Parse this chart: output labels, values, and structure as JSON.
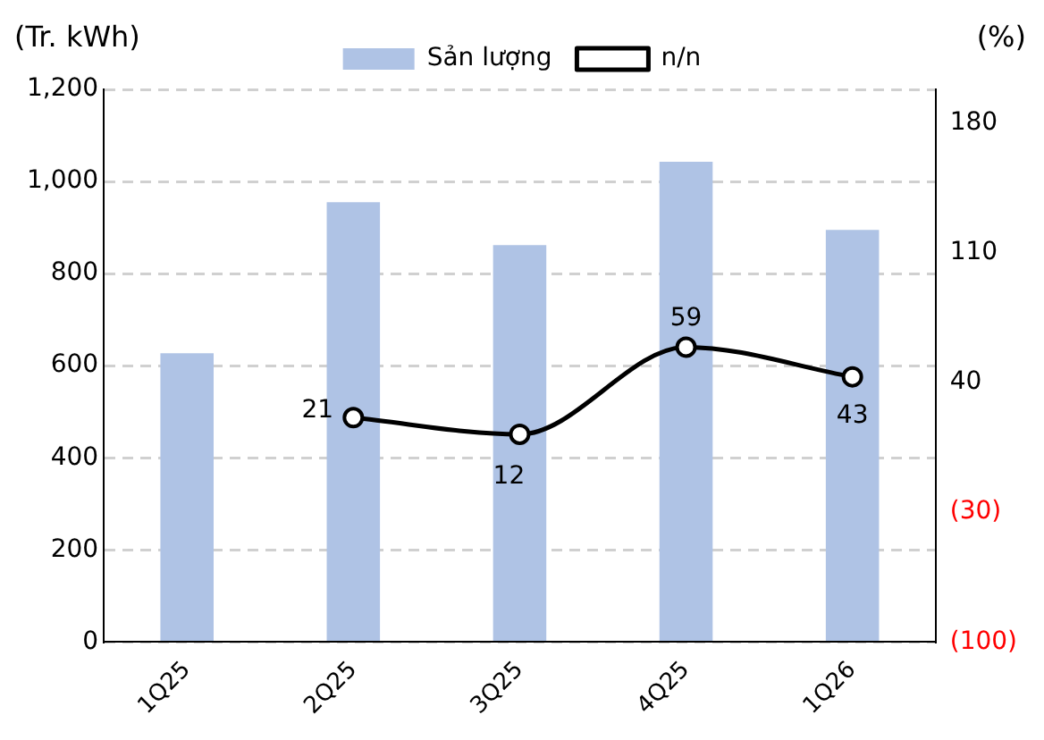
{
  "chart_data": {
    "type": "bar",
    "ylabel": "(Tr. kWh)",
    "y2label": "(%)",
    "categories": [
      "1Q25",
      "2Q25",
      "3Q25",
      "4Q25",
      "1Q26"
    ],
    "series": [
      {
        "name": "Sản lượng",
        "color": "#afc3e5",
        "values": [
          627,
          955,
          862,
          1043,
          895
        ]
      },
      {
        "name": "n/n",
        "type": "line",
        "axis": "y2",
        "color": "#000000",
        "values": [
          null,
          21,
          12,
          59,
          43
        ],
        "value_labels": [
          null,
          "21",
          "12",
          "59",
          "43"
        ]
      }
    ],
    "ylim": [
      0,
      1200
    ],
    "yticks": [
      0,
      {
        "value": 200,
        "label": "200"
      },
      400,
      600,
      800,
      {
        "value": 1000,
        "label": "1,000"
      },
      {
        "value": 1200,
        "label": "1,200"
      }
    ],
    "y2lim": [
      -100,
      198
    ],
    "y2ticks": [
      {
        "value": -100,
        "label": "(100)"
      },
      {
        "value": -30,
        "label": "(30)"
      },
      40,
      110,
      180
    ],
    "grid": "y",
    "legend": "top",
    "marker": "circle",
    "line_style": "solid"
  }
}
